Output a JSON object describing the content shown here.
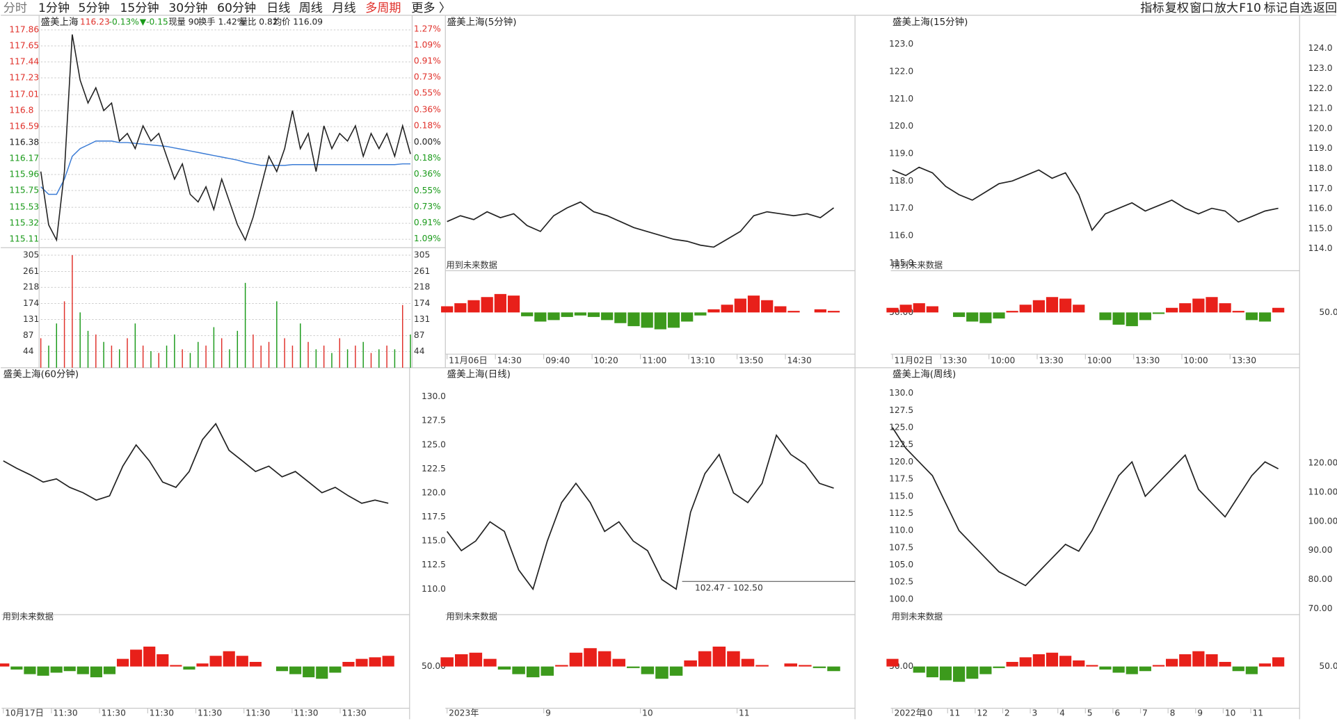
{
  "toolbar": {
    "left": [
      "分时",
      "1分钟",
      "5分钟",
      "15分钟",
      "30分钟",
      "60分钟",
      "日线",
      "周线",
      "月线",
      "多周期",
      "更多 〉"
    ],
    "right": [
      "指标",
      "复权",
      "窗口",
      "放大",
      "F10",
      "标记",
      "自选",
      "返回"
    ]
  },
  "intraday": {
    "title": "盛美上海",
    "info": [
      "116.23",
      "-0.13%",
      "▼-0.15",
      "现量 90",
      "换手 1.42%",
      "量比 0.82",
      "均价 116.09"
    ],
    "ylim": [
      115.01,
      117.94
    ],
    "yticks": [
      117.86,
      117.65,
      117.44,
      117.23,
      117.01,
      116.8,
      116.59,
      116.38,
      116.17,
      115.96,
      115.75,
      115.53,
      115.32,
      115.11
    ],
    "y2lim": [
      -1.18,
      1.33
    ],
    "y2ticks": [
      {
        "value": 1.27,
        "label": "1.27%"
      },
      {
        "value": 1.09,
        "label": "1.09%"
      },
      {
        "value": 0.91,
        "label": "0.91%"
      },
      {
        "value": 0.73,
        "label": "0.73%"
      },
      {
        "value": 0.55,
        "label": "0.55%"
      },
      {
        "value": 0.36,
        "label": "0.36%"
      },
      {
        "value": 0.18,
        "label": "0.18%"
      },
      {
        "value": 0,
        "label": "0.00%"
      },
      {
        "value": -0.18,
        "label": "0.18%"
      },
      {
        "value": -0.36,
        "label": "0.36%"
      },
      {
        "value": -0.55,
        "label": "0.55%"
      },
      {
        "value": -0.73,
        "label": "0.73%"
      },
      {
        "value": -0.91,
        "label": "0.91%"
      },
      {
        "value": -1.09,
        "label": "1.09%"
      }
    ],
    "vol_ylim": [
      0,
      323
    ],
    "vol_ticks": [
      305,
      261,
      218,
      174,
      131,
      87,
      44
    ],
    "price": [
      116.0,
      115.3,
      115.1,
      116.0,
      117.8,
      117.2,
      116.9,
      117.1,
      116.8,
      116.9,
      116.4,
      116.5,
      116.3,
      116.6,
      116.4,
      116.5,
      116.2,
      115.9,
      116.1,
      115.7,
      115.6,
      115.8,
      115.5,
      115.9,
      115.6,
      115.3,
      115.1,
      115.4,
      115.8,
      116.2,
      116.0,
      116.3,
      116.8,
      116.3,
      116.5,
      116.0,
      116.6,
      116.3,
      116.5,
      116.4,
      116.6,
      116.2,
      116.5,
      116.3,
      116.5,
      116.2,
      116.6,
      116.23
    ],
    "avg": [
      115.8,
      115.7,
      115.7,
      115.9,
      116.2,
      116.3,
      116.35,
      116.4,
      116.4,
      116.4,
      116.38,
      116.38,
      116.37,
      116.36,
      116.35,
      116.34,
      116.33,
      116.31,
      116.29,
      116.27,
      116.25,
      116.23,
      116.21,
      116.19,
      116.17,
      116.15,
      116.12,
      116.1,
      116.08,
      116.08,
      116.08,
      116.08,
      116.09,
      116.09,
      116.09,
      116.09,
      116.09,
      116.09,
      116.09,
      116.09,
      116.09,
      116.09,
      116.09,
      116.09,
      116.09,
      116.09,
      116.1,
      116.1
    ],
    "volume": [
      80,
      60,
      120,
      180,
      305,
      150,
      100,
      90,
      70,
      60,
      50,
      80,
      120,
      60,
      45,
      40,
      60,
      90,
      50,
      40,
      70,
      60,
      110,
      80,
      50,
      100,
      230,
      90,
      60,
      70,
      180,
      80,
      60,
      120,
      70,
      50,
      60,
      40,
      80,
      50,
      60,
      70,
      40,
      50,
      60,
      50,
      170,
      90
    ]
  },
  "panels": [
    {
      "title": "盛美上海(5分钟)",
      "note": "用到未来数据",
      "ylim": [
        114,
        126.4
      ],
      "xlabels": [
        "11月06日",
        "14:30",
        "09:40",
        "10:20",
        "11:00",
        "13:10",
        "13:50",
        "14:30"
      ],
      "close": [
        116.5,
        116.8,
        116.6,
        117.0,
        116.7,
        116.9,
        116.3,
        116.0,
        116.8,
        117.2,
        117.5,
        117.0,
        116.8,
        116.5,
        116.2,
        116.0,
        115.8,
        115.6,
        115.5,
        115.3,
        115.2,
        115.6,
        116.0,
        116.8,
        117.0,
        116.9,
        116.8,
        116.9,
        116.7,
        117.2
      ],
      "osc": [
        58,
        62,
        66,
        70,
        74,
        72,
        45,
        38,
        40,
        44,
        46,
        44,
        40,
        36,
        32,
        30,
        28,
        30,
        38,
        46,
        54,
        60,
        68,
        72,
        66,
        58,
        52,
        50,
        54,
        52
      ]
    },
    {
      "title": "盛美上海(15分钟)",
      "note": "用到未来数据",
      "ylim": [
        114.72,
        123.62
      ],
      "yticks": [
        {
          "value": 123,
          "label": "123.0"
        },
        {
          "value": 122,
          "label": "122.0"
        },
        {
          "value": 121,
          "label": "121.0"
        },
        {
          "value": 120,
          "label": "120.0"
        },
        {
          "value": 119,
          "label": "119.0"
        },
        {
          "value": 118,
          "label": "118.0"
        },
        {
          "value": 117,
          "label": "117.0"
        },
        {
          "value": 116,
          "label": "116.0"
        },
        {
          "value": 115,
          "label": "115.0"
        }
      ],
      "y2lim": [
        112.9,
        125.06
      ],
      "y2ticks": [
        {
          "value": 124,
          "label": "124.0"
        },
        {
          "value": 123,
          "label": "123.0"
        },
        {
          "value": 122,
          "label": "122.0"
        },
        {
          "value": 121,
          "label": "121.0"
        },
        {
          "value": 120,
          "label": "120.0"
        },
        {
          "value": 119,
          "label": "119.0"
        },
        {
          "value": 118,
          "label": "118.0"
        },
        {
          "value": 117,
          "label": "117.0"
        },
        {
          "value": 116,
          "label": "116.0"
        },
        {
          "value": 115,
          "label": "115.0"
        },
        {
          "value": 114,
          "label": "114.0"
        }
      ],
      "osc_label": {
        "value": 50,
        "label": "50.00"
      },
      "xlabels": [
        "11月02日",
        "13:30",
        "10:00",
        "13:30",
        "10:00",
        "13:30",
        "10:00",
        "13:30"
      ],
      "close": [
        118.4,
        118.2,
        118.5,
        118.3,
        117.8,
        117.5,
        117.3,
        117.6,
        117.9,
        118.0,
        118.2,
        118.4,
        118.1,
        118.3,
        117.5,
        116.2,
        116.8,
        117.0,
        117.2,
        116.9,
        117.1,
        117.3,
        117.0,
        116.8,
        117.0,
        116.9,
        116.5,
        116.7,
        116.9,
        117.0
      ],
      "osc": [
        56,
        60,
        62,
        58,
        50,
        44,
        38,
        36,
        42,
        52,
        60,
        66,
        70,
        68,
        60,
        50,
        40,
        34,
        32,
        40,
        48,
        56,
        62,
        68,
        70,
        62,
        52,
        40,
        38,
        56
      ]
    },
    {
      "title": "盛美上海(60分钟)",
      "note": "用到未来数据",
      "ylim": [
        104,
        126
      ],
      "xlabels": [
        "10月17日",
        "11:30",
        "11:30",
        "11:30",
        "11:30",
        "11:30",
        "11:30",
        "11:30"
      ],
      "close": [
        118.5,
        117.8,
        117.2,
        116.5,
        116.8,
        116.0,
        115.5,
        114.8,
        115.2,
        118.0,
        120.0,
        118.5,
        116.5,
        116.0,
        117.5,
        120.5,
        122.0,
        119.5,
        118.5,
        117.5,
        118.0,
        117.0,
        117.5,
        116.5,
        115.5,
        116.0,
        115.2,
        114.5,
        114.8,
        114.5
      ],
      "osc": [
        54,
        46,
        40,
        38,
        42,
        44,
        40,
        36,
        40,
        60,
        72,
        76,
        66,
        52,
        46,
        54,
        64,
        70,
        64,
        56,
        50,
        44,
        40,
        36,
        34,
        42,
        56,
        60,
        62,
        64
      ]
    },
    {
      "title": "盛美上海(日线)",
      "note": "用到未来数据",
      "ylim": [
        107.35,
        131.6
      ],
      "yticks": [
        {
          "value": 130,
          "label": "130.0"
        },
        {
          "value": 127.5,
          "label": "127.5"
        },
        {
          "value": 125,
          "label": "125.0"
        },
        {
          "value": 122.5,
          "label": "122.5"
        },
        {
          "value": 120,
          "label": "120.0"
        },
        {
          "value": 117.5,
          "label": "117.5"
        },
        {
          "value": 115,
          "label": "115.0"
        },
        {
          "value": 112.5,
          "label": "112.5"
        },
        {
          "value": 110,
          "label": "110.0"
        }
      ],
      "osc_label": {
        "value": 50,
        "label": "50.00"
      },
      "annotation": "102.47 - 102.50",
      "xlabels": [
        "2023年",
        "9",
        "10",
        "11"
      ],
      "close": [
        116,
        114,
        115,
        117,
        116,
        112,
        110,
        115,
        119,
        121,
        119,
        116,
        117,
        115,
        114,
        111,
        110,
        118,
        122,
        124,
        120,
        119,
        121,
        126,
        124,
        123,
        121,
        120.5
      ],
      "osc": [
        62,
        66,
        68,
        60,
        46,
        40,
        36,
        38,
        52,
        68,
        74,
        70,
        60,
        48,
        40,
        34,
        38,
        58,
        70,
        76,
        70,
        60,
        52,
        50,
        54,
        52,
        48,
        44
      ]
    },
    {
      "title": "盛美上海(周线)",
      "note": "用到未来数据",
      "ylim": [
        97.77,
        131.73
      ],
      "yticks": [
        {
          "value": 130,
          "label": "130.0"
        },
        {
          "value": 127.5,
          "label": "127.5"
        },
        {
          "value": 125,
          "label": "125.0"
        },
        {
          "value": 122.5,
          "label": "122.5"
        },
        {
          "value": 120,
          "label": "120.0"
        },
        {
          "value": 117.5,
          "label": "117.5"
        },
        {
          "value": 115,
          "label": "115.0"
        },
        {
          "value": 112.5,
          "label": "112.5"
        },
        {
          "value": 110,
          "label": "110.0"
        },
        {
          "value": 107.5,
          "label": "107.5"
        },
        {
          "value": 105,
          "label": "105.0"
        },
        {
          "value": 102.5,
          "label": "102.5"
        },
        {
          "value": 100,
          "label": "100.0"
        }
      ],
      "y2lim": [
        68,
        148
      ],
      "y2ticks": [
        {
          "value": 120,
          "label": "120.00"
        },
        {
          "value": 110,
          "label": "110.00"
        },
        {
          "value": 100,
          "label": "100.00"
        },
        {
          "value": 90,
          "label": "90.00"
        },
        {
          "value": 80,
          "label": "80.00"
        },
        {
          "value": 70,
          "label": "70.00"
        }
      ],
      "osc_label": {
        "value": 50,
        "label": "50.00"
      },
      "xlabels": [
        "2022年",
        "10",
        "11",
        "12",
        "2",
        "3",
        "4",
        "5",
        "6",
        "7",
        "8",
        "9",
        "10",
        "11"
      ],
      "close": [
        125,
        122,
        120,
        118,
        114,
        110,
        108,
        106,
        104,
        103,
        102,
        104,
        106,
        108,
        107,
        110,
        114,
        118,
        120,
        115,
        117,
        119,
        121,
        116,
        114,
        112,
        115,
        118,
        120,
        119
      ],
      "osc": [
        60,
        50,
        42,
        36,
        32,
        30,
        34,
        40,
        48,
        56,
        62,
        66,
        68,
        64,
        58,
        52,
        46,
        42,
        40,
        44,
        52,
        60,
        66,
        70,
        66,
        56,
        44,
        40,
        54,
        62
      ]
    }
  ]
}
